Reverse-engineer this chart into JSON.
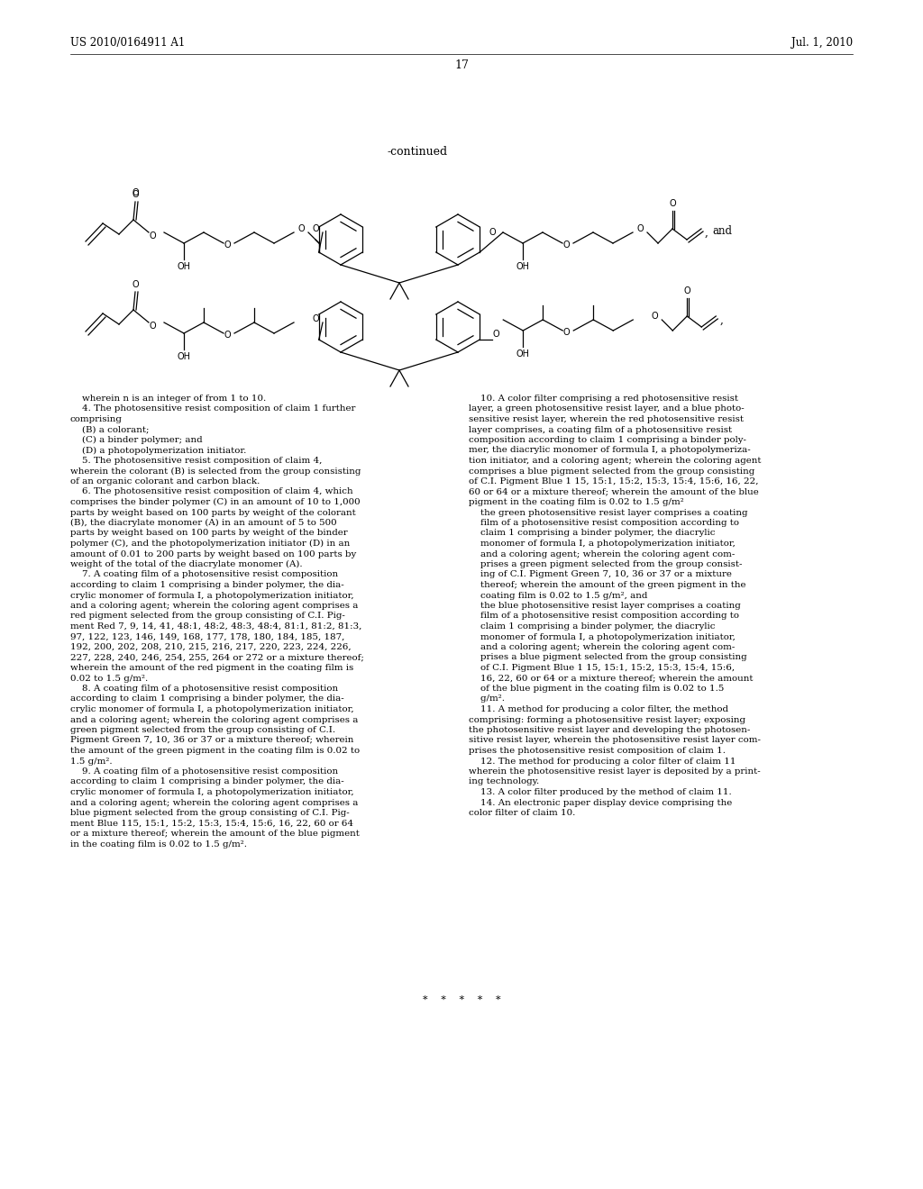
{
  "bg_color": "#ffffff",
  "header_left": "US 2010/0164911 A1",
  "header_right": "Jul. 1, 2010",
  "page_number": "17",
  "continued_label": "-continued",
  "left_col_text": "    wherein n is an integer of from 1 to 10.\n    4. The photosensitive resist composition of claim 1 further\ncomprising\n    (B) a colorant;\n    (C) a binder polymer; and\n    (D) a photopolymerization initiator.\n    5. The photosensitive resist composition of claim 4,\nwherein the colorant (B) is selected from the group consisting\nof an organic colorant and carbon black.\n    6. The photosensitive resist composition of claim 4, which\ncomprises the binder polymer (C) in an amount of 10 to 1,000\nparts by weight based on 100 parts by weight of the colorant\n(B), the diacrylate monomer (A) in an amount of 5 to 500\nparts by weight based on 100 parts by weight of the binder\npolymer (C), and the photopolymerization initiator (D) in an\namount of 0.01 to 200 parts by weight based on 100 parts by\nweight of the total of the diacrylate monomer (A).\n    7. A coating film of a photosensitive resist composition\naccording to claim 1 comprising a binder polymer, the dia-\ncrylic monomer of formula I, a photopolymerization initiator,\nand a coloring agent; wherein the coloring agent comprises a\nred pigment selected from the group consisting of C.I. Pig-\nment Red 7, 9, 14, 41, 48:1, 48:2, 48:3, 48:4, 81:1, 81:2, 81:3,\n97, 122, 123, 146, 149, 168, 177, 178, 180, 184, 185, 187,\n192, 200, 202, 208, 210, 215, 216, 217, 220, 223, 224, 226,\n227, 228, 240, 246, 254, 255, 264 or 272 or a mixture thereof;\nwherein the amount of the red pigment in the coating film is\n0.02 to 1.5 g/m².\n    8. A coating film of a photosensitive resist composition\naccording to claim 1 comprising a binder polymer, the dia-\ncrylic monomer of formula I, a photopolymerization initiator,\nand a coloring agent; wherein the coloring agent comprises a\ngreen pigment selected from the group consisting of C.I.\nPigment Green 7, 10, 36 or 37 or a mixture thereof; wherein\nthe amount of the green pigment in the coating film is 0.02 to\n1.5 g/m².\n    9. A coating film of a photosensitive resist composition\naccording to claim 1 comprising a binder polymer, the dia-\ncrylic monomer of formula I, a photopolymerization initiator,\nand a coloring agent; wherein the coloring agent comprises a\nblue pigment selected from the group consisting of C.I. Pig-\nment Blue 115, 15:1, 15:2, 15:3, 15:4, 15:6, 16, 22, 60 or 64\nor a mixture thereof; wherein the amount of the blue pigment\nin the coating film is 0.02 to 1.5 g/m².",
  "right_col_text": "    10. A color filter comprising a red photosensitive resist\nlayer, a green photosensitive resist layer, and a blue photo-\nsensitive resist layer, wherein the red photosensitive resist\nlayer comprises, a coating film of a photosensitive resist\ncomposition according to claim 1 comprising a binder poly-\nmer, the diacrylic monomer of formula I, a photopolymeriza-\ntion initiator, and a coloring agent; wherein the coloring agent\ncomprises a blue pigment selected from the group consisting\nof C.I. Pigment Blue 1 15, 15:1, 15:2, 15:3, 15:4, 15:6, 16, 22,\n60 or 64 or a mixture thereof; wherein the amount of the blue\npigment in the coating film is 0.02 to 1.5 g/m²\n    the green photosensitive resist layer comprises a coating\n    film of a photosensitive resist composition according to\n    claim 1 comprising a binder polymer, the diacrylic\n    monomer of formula I, a photopolymerization initiator,\n    and a coloring agent; wherein the coloring agent com-\n    prises a green pigment selected from the group consist-\n    ing of C.I. Pigment Green 7, 10, 36 or 37 or a mixture\n    thereof; wherein the amount of the green pigment in the\n    coating film is 0.02 to 1.5 g/m², and\n    the blue photosensitive resist layer comprises a coating\n    film of a photosensitive resist composition according to\n    claim 1 comprising a binder polymer, the diacrylic\n    monomer of formula I, a photopolymerization initiator,\n    and a coloring agent; wherein the coloring agent com-\n    prises a blue pigment selected from the group consisting\n    of C.I. Pigment Blue 1 15, 15:1, 15:2, 15:3, 15:4, 15:6,\n    16, 22, 60 or 64 or a mixture thereof; wherein the amount\n    of the blue pigment in the coating film is 0.02 to 1.5\n    g/m².\n    11. A method for producing a color filter, the method\ncomprising: forming a photosensitive resist layer; exposing\nthe photosensitive resist layer and developing the photosen-\nsitive resist layer, wherein the photosensitive resist layer com-\nprises the photosensitive resist composition of claim 1.\n    12. The method for producing a color filter of claim 11\nwherein the photosensitive resist layer is deposited by a print-\ning technology.\n    13. A color filter produced by the method of claim 11.\n    14. An electronic paper display device comprising the\ncolor filter of claim 10.",
  "stars": "*  *  *  *  *"
}
